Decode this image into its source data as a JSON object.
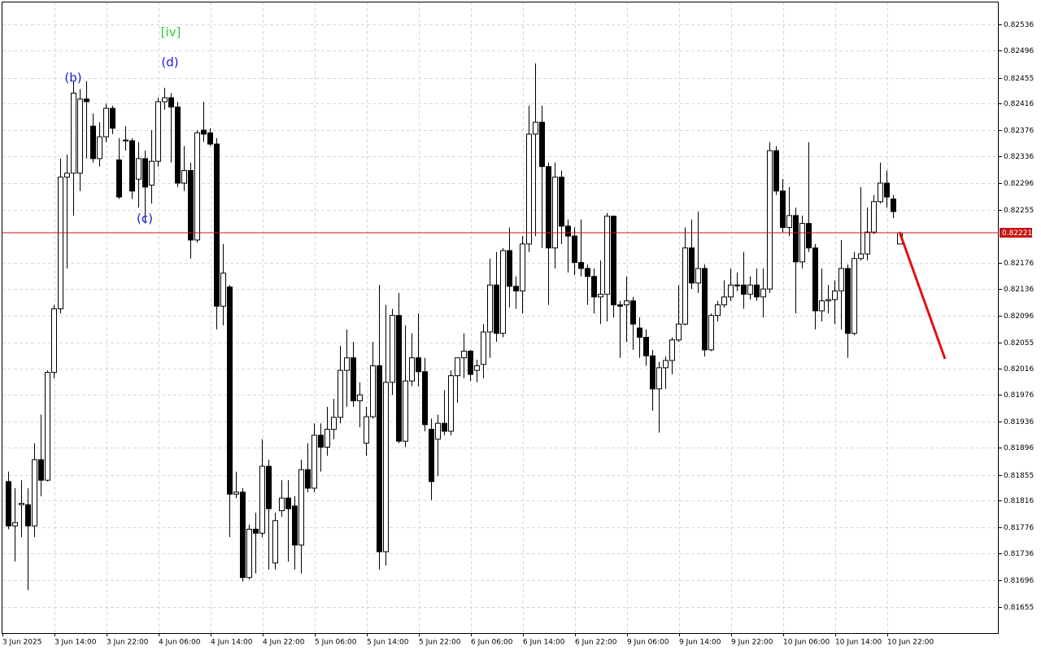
{
  "chart_data": {
    "type": "candlestick",
    "ylim": [
      0.81616,
      0.82569
    ],
    "yticks": [
      0.82536,
      0.82496,
      0.82455,
      0.82416,
      0.82376,
      0.82336,
      0.82296,
      0.82255,
      0.82176,
      0.82136,
      0.82096,
      0.82055,
      0.82016,
      0.81976,
      0.81936,
      0.81896,
      0.81855,
      0.81816,
      0.81776,
      0.81736,
      0.81696,
      0.81655
    ],
    "grid": true,
    "bull_color": "#ffffff",
    "bear_color": "#000000",
    "current_price": 0.82221,
    "current_price_color": "#c81414",
    "annotations": [
      {
        "text": "(b)",
        "color": "#1a1adc"
      },
      {
        "text": "(c)",
        "color": "#1a1adc"
      },
      {
        "text": "(d)",
        "color": "#1a1adc"
      },
      {
        "text": "[iv]",
        "color": "#32c832"
      }
    ],
    "categories": [
      "3 Jun 2025",
      null,
      null,
      null,
      null,
      null,
      null,
      null,
      "3 Jun 14:00",
      null,
      null,
      null,
      null,
      null,
      null,
      null,
      "3 Jun 22:00",
      null,
      null,
      null,
      null,
      null,
      null,
      null,
      "4 Jun 06:00",
      null,
      null,
      null,
      null,
      null,
      null,
      null,
      "4 Jun 14:00",
      null,
      null,
      null,
      null,
      null,
      null,
      null,
      "4 Jun 22:00",
      null,
      null,
      null,
      null,
      null,
      null,
      null,
      "5 Jun 06:00",
      null,
      null,
      null,
      null,
      null,
      null,
      null,
      "5 Jun 14:00",
      null,
      null,
      null,
      null,
      null,
      null,
      null,
      "5 Jun 22:00",
      null,
      null,
      null,
      null,
      null,
      null,
      null,
      "6 Jun 06:00",
      null,
      null,
      null,
      null,
      null,
      null,
      null,
      "6 Jun 14:00",
      null,
      null,
      null,
      null,
      null,
      null,
      null,
      "6 Jun 22:00",
      null,
      null,
      null,
      null,
      null,
      null,
      null,
      "9 Jun 06:00",
      null,
      null,
      null,
      null,
      null,
      null,
      null,
      "9 Jun 14:00",
      null,
      null,
      null,
      null,
      null,
      null,
      null,
      "9 Jun 22:00",
      null,
      null,
      null,
      null,
      null,
      null,
      null,
      "10 Jun 06:00",
      null,
      null,
      null,
      null,
      null,
      null,
      null,
      "10 Jun 14:00",
      null,
      null,
      null,
      null,
      null,
      null,
      null,
      "10 Jun 22:00",
      null
    ],
    "open": [
      0.81845,
      0.81778,
      0.8181,
      0.8181,
      0.81778,
      0.81878,
      0.81847,
      0.8201,
      0.82106,
      0.82305,
      0.82311,
      0.82311,
      0.82423,
      0.82382,
      0.82333,
      0.82366,
      0.82409,
      0.82331,
      0.82361,
      0.8236,
      0.82302,
      0.82333,
      0.82293,
      0.82329,
      0.82419,
      0.82425,
      0.82411,
      0.82296,
      0.82315,
      0.8221,
      0.82376,
      0.82372,
      0.82355,
      0.8211,
      0.82139,
      0.81826,
      0.81829,
      0.817,
      0.81773,
      0.81767,
      0.81868,
      0.81722,
      0.81801,
      0.8182,
      0.81808,
      0.81749,
      0.81863,
      0.81835,
      0.81915,
      0.81897,
      0.81924,
      0.81942,
      0.82013,
      0.82032,
      0.81967,
      0.81903,
      0.81943,
      0.8202,
      0.81739,
      0.81995,
      0.82096,
      0.81906,
      0.81997,
      0.82032,
      0.82011,
      0.81924,
      0.81909,
      0.81933,
      0.81921,
      0.82005,
      0.82032,
      0.82042,
      0.82013,
      0.82022,
      0.82071,
      0.82142,
      0.82069,
      0.82194,
      0.8214,
      0.82133,
      0.82204,
      0.8237,
      0.82388,
      0.82321,
      0.82198,
      0.82305,
      0.82231,
      0.82216,
      0.82176,
      0.82167,
      0.82155,
      0.82124,
      0.82128,
      0.82246,
      0.82112,
      0.82112,
      0.82118,
      0.82077,
      0.82063,
      0.82035,
      0.81985,
      0.82017,
      0.82028,
      0.82059,
      0.82083,
      0.82198,
      0.82145,
      0.82167,
      0.82044,
      0.82096,
      0.82112,
      0.82124,
      0.82142,
      0.82142,
      0.82128,
      0.82142,
      0.82124,
      0.82136,
      0.82345,
      0.82284,
      0.82229,
      0.82247,
      0.82177,
      0.82235,
      0.82198,
      0.82103,
      0.82118,
      0.8212,
      0.82133,
      0.82167,
      0.82069,
      0.82182,
      0.82189,
      0.82222,
      0.82268,
      0.82296,
      0.82272,
      0.82204
    ],
    "high": [
      0.8186,
      0.81835,
      0.81847,
      0.81835,
      0.81903,
      0.81946,
      0.82013,
      0.82112,
      0.82333,
      0.82339,
      0.8245,
      0.82438,
      0.8245,
      0.82401,
      0.82388,
      0.82416,
      0.82413,
      0.82364,
      0.82382,
      0.82364,
      0.82358,
      0.82345,
      0.82376,
      0.82425,
      0.8244,
      0.82432,
      0.82419,
      0.82352,
      0.82327,
      0.82376,
      0.82419,
      0.82379,
      0.82364,
      0.82204,
      0.82142,
      0.8186,
      0.81835,
      0.8178,
      0.81798,
      0.81909,
      0.81878,
      0.81798,
      0.81847,
      0.81847,
      0.81823,
      0.81878,
      0.81903,
      0.81933,
      0.81933,
      0.81958,
      0.8197,
      0.8205,
      0.82075,
      0.82056,
      0.81995,
      0.81958,
      0.82056,
      0.82142,
      0.82112,
      0.82106,
      0.8213,
      0.82081,
      0.82069,
      0.82099,
      0.82032,
      0.8194,
      0.81946,
      0.81983,
      0.82013,
      0.82032,
      0.82069,
      0.82044,
      0.82029,
      0.82083,
      0.82182,
      0.82192,
      0.82198,
      0.82229,
      0.82155,
      0.82216,
      0.82413,
      0.82477,
      0.82413,
      0.82327,
      0.82327,
      0.82315,
      0.82241,
      0.82229,
      0.82241,
      0.82173,
      0.82167,
      0.82179,
      0.82251,
      0.82247,
      0.82118,
      0.82155,
      0.82124,
      0.82093,
      0.82075,
      0.82044,
      0.82026,
      0.82034,
      0.82063,
      0.82142,
      0.82229,
      0.82241,
      0.82253,
      0.82173,
      0.82099,
      0.82118,
      0.82149,
      0.82167,
      0.82161,
      0.82192,
      0.82155,
      0.82167,
      0.82167,
      0.82358,
      0.82352,
      0.82302,
      0.8229,
      0.82259,
      0.82247,
      0.82358,
      0.82204,
      0.82167,
      0.82142,
      0.82149,
      0.8221,
      0.82173,
      0.82192,
      0.8229,
      0.82259,
      0.82278,
      0.82327,
      0.82315,
      0.82278,
      0.82222
    ],
    "low": [
      0.81773,
      0.81724,
      0.81761,
      0.81681,
      0.81761,
      0.81823,
      0.81845,
      0.82001,
      0.82099,
      0.82167,
      0.82247,
      0.82284,
      0.82333,
      0.82327,
      0.82321,
      0.82358,
      0.8237,
      0.82272,
      0.82345,
      0.82272,
      0.82259,
      0.82235,
      0.82265,
      0.82321,
      0.82407,
      0.82327,
      0.8229,
      0.82284,
      0.82182,
      0.82206,
      0.82358,
      0.82352,
      0.82075,
      0.82081,
      0.81761,
      0.8182,
      0.81694,
      0.81697,
      0.81706,
      0.81761,
      0.81712,
      0.81712,
      0.81792,
      0.81724,
      0.81712,
      0.81706,
      0.81829,
      0.81829,
      0.8186,
      0.81884,
      0.81909,
      0.81933,
      0.81958,
      0.81958,
      0.81927,
      0.81884,
      0.8194,
      0.81712,
      0.81718,
      0.81976,
      0.81903,
      0.81897,
      0.81989,
      0.81989,
      0.81921,
      0.81817,
      0.81853,
      0.81915,
      0.81915,
      0.81964,
      0.82001,
      0.81997,
      0.81995,
      0.82001,
      0.82032,
      0.82056,
      0.82063,
      0.82108,
      0.82106,
      0.82099,
      0.82192,
      0.82216,
      0.82198,
      0.82112,
      0.82167,
      0.82204,
      0.82161,
      0.82157,
      0.82155,
      0.82112,
      0.82099,
      0.82083,
      0.82087,
      0.82093,
      0.82032,
      0.82056,
      0.82044,
      0.82032,
      0.8202,
      0.81952,
      0.81919,
      0.81985,
      0.82007,
      0.82056,
      0.82081,
      0.82136,
      0.8213,
      0.82034,
      0.82042,
      0.82087,
      0.82108,
      0.82118,
      0.82133,
      0.82106,
      0.8212,
      0.82118,
      0.82093,
      0.8213,
      0.82278,
      0.82222,
      0.82216,
      0.82099,
      0.82167,
      0.82192,
      0.82075,
      0.82087,
      0.82099,
      0.82083,
      0.82075,
      0.82032,
      0.82066,
      0.82179,
      0.82179,
      0.82219,
      0.82265,
      0.82259,
      0.82243,
      0.82204
    ],
    "close": [
      0.81778,
      0.81783,
      0.81812,
      0.81778,
      0.81878,
      0.81847,
      0.8201,
      0.82106,
      0.82305,
      0.82311,
      0.82432,
      0.82423,
      0.82419,
      0.82333,
      0.82366,
      0.82409,
      0.82379,
      0.82275,
      0.8236,
      0.82284,
      0.82333,
      0.8229,
      0.82329,
      0.82419,
      0.82425,
      0.82411,
      0.82296,
      0.82315,
      0.8221,
      0.82372,
      0.8237,
      0.82355,
      0.8211,
      0.8216,
      0.81826,
      0.81829,
      0.817,
      0.81773,
      0.81767,
      0.81868,
      0.81804,
      0.81786,
      0.8182,
      0.81804,
      0.81749,
      0.81863,
      0.81835,
      0.81915,
      0.81897,
      0.81924,
      0.81942,
      0.82013,
      0.82032,
      0.81967,
      0.81976,
      0.81943,
      0.8202,
      0.81739,
      0.81995,
      0.82096,
      0.81906,
      0.81997,
      0.82032,
      0.82011,
      0.81931,
      0.81845,
      0.81933,
      0.81921,
      0.82005,
      0.82032,
      0.82042,
      0.82007,
      0.8202,
      0.82071,
      0.82142,
      0.82069,
      0.82194,
      0.8214,
      0.82133,
      0.82204,
      0.8237,
      0.82388,
      0.82321,
      0.82198,
      0.82305,
      0.82231,
      0.82216,
      0.82176,
      0.82167,
      0.82155,
      0.82124,
      0.82128,
      0.82246,
      0.82112,
      0.8211,
      0.82118,
      0.82083,
      0.82063,
      0.82035,
      0.81985,
      0.82017,
      0.82028,
      0.82059,
      0.82083,
      0.82198,
      0.82145,
      0.82167,
      0.82044,
      0.82096,
      0.82112,
      0.82124,
      0.82142,
      0.82141,
      0.82128,
      0.82142,
      0.82124,
      0.82136,
      0.82345,
      0.82284,
      0.82229,
      0.82247,
      0.82177,
      0.82235,
      0.82198,
      0.82103,
      0.82118,
      0.8212,
      0.82133,
      0.82167,
      0.82069,
      0.82182,
      0.82189,
      0.82222,
      0.82268,
      0.82296,
      0.82275,
      0.82253,
      0.82221
    ]
  }
}
